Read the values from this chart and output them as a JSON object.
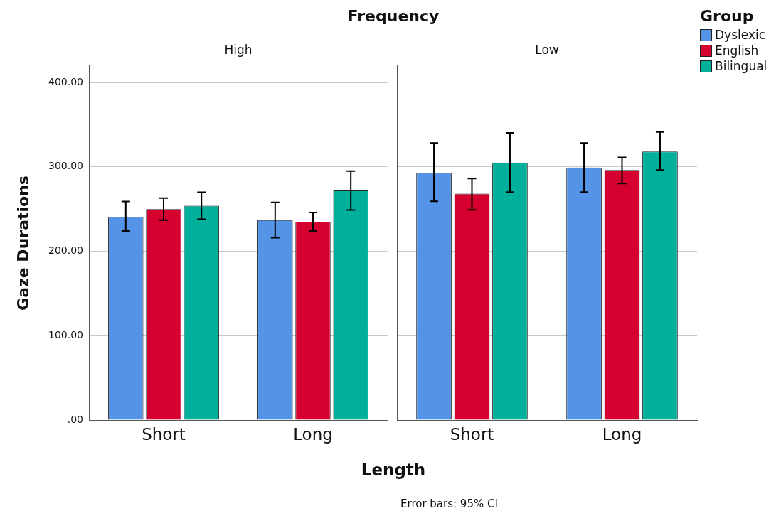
{
  "chart_data": [
    {
      "type": "bar",
      "title": "Frequency",
      "subtitle": "High",
      "xlabel": "Length",
      "ylabel": "Gaze Durations",
      "categories": [
        "Short",
        "Long"
      ],
      "ylim": [
        0,
        420
      ],
      "yticks": [
        {
          "value": 0,
          "label": ".00"
        },
        {
          "value": 100,
          "label": "100.00"
        },
        {
          "value": 200,
          "label": "200.00"
        },
        {
          "value": 300,
          "label": "300.00"
        },
        {
          "value": 400,
          "label": "400.00"
        }
      ],
      "grid": "y",
      "legend": false,
      "series": [
        {
          "color": "#5593e6",
          "values": [
            241,
            237
          ],
          "errors": [
            [
              224,
              259
            ],
            [
              216,
              258
            ]
          ]
        },
        {
          "color": "#d5002f",
          "values": [
            250,
            235
          ],
          "errors": [
            [
              237,
              263
            ],
            [
              224,
              246
            ]
          ]
        },
        {
          "color": "#00b09b",
          "values": [
            254,
            272
          ],
          "errors": [
            [
              238,
              270
            ],
            [
              249,
              295
            ]
          ]
        }
      ]
    },
    {
      "type": "bar",
      "subtitle": "Low",
      "legend_title": "Group",
      "legend": "top right",
      "annotations": [
        "Error bars: 95% CI"
      ],
      "categories": [
        "Short",
        "Long"
      ],
      "ylim": [
        0,
        420
      ],
      "yticks": [
        0,
        100,
        200,
        300,
        400
      ],
      "grid": "y",
      "tick_labels": "x",
      "series": [
        {
          "name": "Dyslexic",
          "color": "#5593e6",
          "values": [
            293,
            299
          ],
          "errors": [
            [
              259,
              328
            ],
            [
              270,
              328
            ]
          ]
        },
        {
          "name": "English",
          "color": "#d5002f",
          "values": [
            268,
            296
          ],
          "errors": [
            [
              249,
              286
            ],
            [
              280,
              311
            ]
          ]
        },
        {
          "name": "Bilingual",
          "color": "#00b09b",
          "values": [
            305,
            318
          ],
          "errors": [
            [
              270,
              340
            ],
            [
              296,
              341
            ]
          ]
        }
      ]
    }
  ]
}
